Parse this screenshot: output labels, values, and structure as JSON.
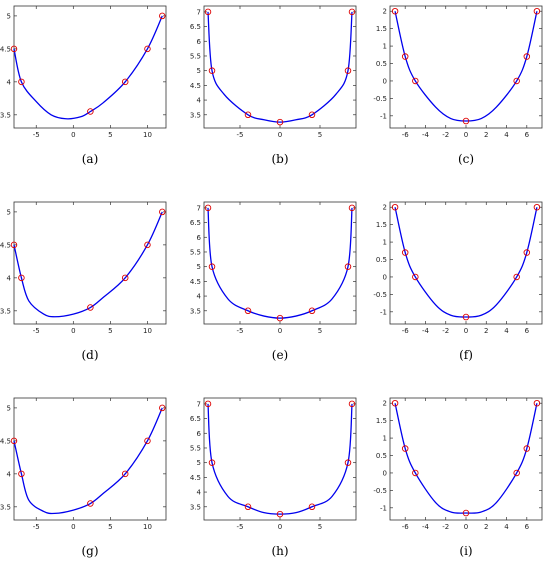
{
  "chart_data": [
    {
      "type": "line",
      "caption": "(a)",
      "xlim": [
        -8,
        12.5
      ],
      "ylim": [
        3.3,
        5.15
      ],
      "xticks": [
        -5,
        0,
        5,
        10
      ],
      "yticks": [
        3.5,
        4,
        4.5,
        5
      ],
      "curve": [
        [
          -8,
          4.5
        ],
        [
          -7,
          4
        ],
        [
          -5,
          3.7
        ],
        [
          -3,
          3.5
        ],
        [
          -1,
          3.44
        ],
        [
          1,
          3.47
        ],
        [
          2.3,
          3.55
        ],
        [
          4,
          3.68
        ],
        [
          7,
          4
        ],
        [
          10,
          4.5
        ],
        [
          12,
          5
        ]
      ],
      "points": [
        [
          -8,
          4.5
        ],
        [
          -7,
          4
        ],
        [
          2.3,
          3.55
        ],
        [
          7,
          4
        ],
        [
          10,
          4.5
        ],
        [
          12,
          5
        ]
      ]
    },
    {
      "type": "line",
      "caption": "(b)",
      "xlim": [
        -9.5,
        9.5
      ],
      "ylim": [
        3.05,
        7.2
      ],
      "xticks": [
        -5,
        0,
        5
      ],
      "yticks": [
        3.5,
        4,
        4.5,
        5,
        5.5,
        6,
        6.5,
        7
      ],
      "curve": [
        [
          -9,
          7
        ],
        [
          -8.5,
          5
        ],
        [
          -7,
          4.2
        ],
        [
          -4,
          3.5
        ],
        [
          -2,
          3.33
        ],
        [
          0,
          3.25
        ],
        [
          2,
          3.33
        ],
        [
          4,
          3.5
        ],
        [
          7,
          4.2
        ],
        [
          8.5,
          5
        ],
        [
          9,
          7
        ]
      ],
      "points": [
        [
          -9,
          7
        ],
        [
          -8.5,
          5
        ],
        [
          -4,
          3.5
        ],
        [
          0,
          3.25
        ],
        [
          4,
          3.5
        ],
        [
          8.5,
          5
        ],
        [
          9,
          7
        ]
      ]
    },
    {
      "type": "line",
      "caption": "(c)",
      "xlim": [
        -7.5,
        7.5
      ],
      "ylim": [
        -1.35,
        2.15
      ],
      "xticks": [
        -6,
        -4,
        -2,
        0,
        2,
        4,
        6
      ],
      "yticks": [
        -1,
        -0.5,
        0,
        0.5,
        1,
        1.5,
        2
      ],
      "curve": [
        [
          -7,
          2
        ],
        [
          -6,
          0.7
        ],
        [
          -5,
          0
        ],
        [
          -3,
          -0.75
        ],
        [
          -1.5,
          -1.08
        ],
        [
          0,
          -1.15
        ],
        [
          1.5,
          -1.08
        ],
        [
          3,
          -0.75
        ],
        [
          5,
          0
        ],
        [
          6,
          0.7
        ],
        [
          7,
          2
        ]
      ],
      "points": [
        [
          -7,
          2
        ],
        [
          -6,
          0.7
        ],
        [
          -5,
          0
        ],
        [
          0,
          -1.15
        ],
        [
          5,
          0
        ],
        [
          6,
          0.7
        ],
        [
          7,
          2
        ]
      ]
    },
    {
      "type": "line",
      "caption": "(d)",
      "xlim": [
        -8,
        12.5
      ],
      "ylim": [
        3.3,
        5.15
      ],
      "xticks": [
        -5,
        0,
        5,
        10
      ],
      "yticks": [
        3.5,
        4,
        4.5,
        5
      ],
      "curve": [
        [
          -8,
          4.5
        ],
        [
          -7,
          4
        ],
        [
          -6,
          3.65
        ],
        [
          -4,
          3.45
        ],
        [
          -2.5,
          3.41
        ],
        [
          0,
          3.45
        ],
        [
          2.3,
          3.55
        ],
        [
          4,
          3.7
        ],
        [
          7,
          4
        ],
        [
          10,
          4.5
        ],
        [
          12,
          5
        ]
      ],
      "points": [
        [
          -8,
          4.5
        ],
        [
          -7,
          4
        ],
        [
          2.3,
          3.55
        ],
        [
          7,
          4
        ],
        [
          10,
          4.5
        ],
        [
          12,
          5
        ]
      ]
    },
    {
      "type": "line",
      "caption": "(e)",
      "xlim": [
        -9.5,
        9.5
      ],
      "ylim": [
        3.05,
        7.2
      ],
      "xticks": [
        -5,
        0,
        5
      ],
      "yticks": [
        3.5,
        4,
        4.5,
        5,
        5.5,
        6,
        6.5,
        7
      ],
      "curve": [
        [
          -9,
          7
        ],
        [
          -8.5,
          5
        ],
        [
          -6.5,
          3.9
        ],
        [
          -4,
          3.5
        ],
        [
          -2,
          3.32
        ],
        [
          0,
          3.25
        ],
        [
          2,
          3.32
        ],
        [
          4,
          3.5
        ],
        [
          6.5,
          3.9
        ],
        [
          8.5,
          5
        ],
        [
          9,
          7
        ]
      ],
      "points": [
        [
          -9,
          7
        ],
        [
          -8.5,
          5
        ],
        [
          -4,
          3.5
        ],
        [
          0,
          3.25
        ],
        [
          4,
          3.5
        ],
        [
          8.5,
          5
        ],
        [
          9,
          7
        ]
      ]
    },
    {
      "type": "line",
      "caption": "(f)",
      "xlim": [
        -7.5,
        7.5
      ],
      "ylim": [
        -1.35,
        2.15
      ],
      "xticks": [
        -6,
        -4,
        -2,
        0,
        2,
        4,
        6
      ],
      "yticks": [
        -1,
        -0.5,
        0,
        0.5,
        1,
        1.5,
        2
      ],
      "curve": [
        [
          -7,
          2
        ],
        [
          -6,
          0.7
        ],
        [
          -5,
          0
        ],
        [
          -3,
          -0.8
        ],
        [
          -1.5,
          -1.1
        ],
        [
          0,
          -1.15
        ],
        [
          1.5,
          -1.1
        ],
        [
          3,
          -0.8
        ],
        [
          5,
          0
        ],
        [
          6,
          0.7
        ],
        [
          7,
          2
        ]
      ],
      "points": [
        [
          -7,
          2
        ],
        [
          -6,
          0.7
        ],
        [
          -5,
          0
        ],
        [
          0,
          -1.15
        ],
        [
          5,
          0
        ],
        [
          6,
          0.7
        ],
        [
          7,
          2
        ]
      ]
    },
    {
      "type": "line",
      "caption": "(g)",
      "xlim": [
        -8,
        12.5
      ],
      "ylim": [
        3.3,
        5.15
      ],
      "xticks": [
        -5,
        0,
        5,
        10
      ],
      "yticks": [
        3.5,
        4,
        4.5,
        5
      ],
      "curve": [
        [
          -8,
          4.5
        ],
        [
          -7,
          4
        ],
        [
          -6,
          3.6
        ],
        [
          -4,
          3.43
        ],
        [
          -2.5,
          3.4
        ],
        [
          0,
          3.45
        ],
        [
          2.3,
          3.55
        ],
        [
          4,
          3.7
        ],
        [
          7,
          4
        ],
        [
          10,
          4.5
        ],
        [
          12,
          5
        ]
      ],
      "points": [
        [
          -8,
          4.5
        ],
        [
          -7,
          4
        ],
        [
          2.3,
          3.55
        ],
        [
          7,
          4
        ],
        [
          10,
          4.5
        ],
        [
          12,
          5
        ]
      ]
    },
    {
      "type": "line",
      "caption": "(h)",
      "xlim": [
        -9.5,
        9.5
      ],
      "ylim": [
        3.05,
        7.2
      ],
      "xticks": [
        -5,
        0,
        5
      ],
      "yticks": [
        3.5,
        4,
        4.5,
        5,
        5.5,
        6,
        6.5,
        7
      ],
      "curve": [
        [
          -9,
          7
        ],
        [
          -8.5,
          5
        ],
        [
          -6.5,
          3.85
        ],
        [
          -4,
          3.5
        ],
        [
          -2,
          3.3
        ],
        [
          0,
          3.25
        ],
        [
          2,
          3.3
        ],
        [
          4,
          3.5
        ],
        [
          6.5,
          3.85
        ],
        [
          8.5,
          5
        ],
        [
          9,
          7
        ]
      ],
      "points": [
        [
          -9,
          7
        ],
        [
          -8.5,
          5
        ],
        [
          -4,
          3.5
        ],
        [
          0,
          3.25
        ],
        [
          4,
          3.5
        ],
        [
          8.5,
          5
        ],
        [
          9,
          7
        ]
      ]
    },
    {
      "type": "line",
      "caption": "(i)",
      "xlim": [
        -7.5,
        7.5
      ],
      "ylim": [
        -1.35,
        2.15
      ],
      "xticks": [
        -6,
        -4,
        -2,
        0,
        2,
        4,
        6
      ],
      "yticks": [
        -1,
        -0.5,
        0,
        0.5,
        1,
        1.5,
        2
      ],
      "curve": [
        [
          -7,
          2
        ],
        [
          -6,
          0.7
        ],
        [
          -5,
          0
        ],
        [
          -3,
          -0.85
        ],
        [
          -1.5,
          -1.12
        ],
        [
          0,
          -1.15
        ],
        [
          1.5,
          -1.12
        ],
        [
          3,
          -0.85
        ],
        [
          5,
          0
        ],
        [
          6,
          0.7
        ],
        [
          7,
          2
        ]
      ],
      "points": [
        [
          -7,
          2
        ],
        [
          -6,
          0.7
        ],
        [
          -5,
          0
        ],
        [
          0,
          -1.15
        ],
        [
          5,
          0
        ],
        [
          6,
          0.7
        ],
        [
          7,
          2
        ]
      ]
    }
  ],
  "colors": {
    "curve": "#0000ee",
    "marker": "#dd0000",
    "axis": "#333333"
  }
}
